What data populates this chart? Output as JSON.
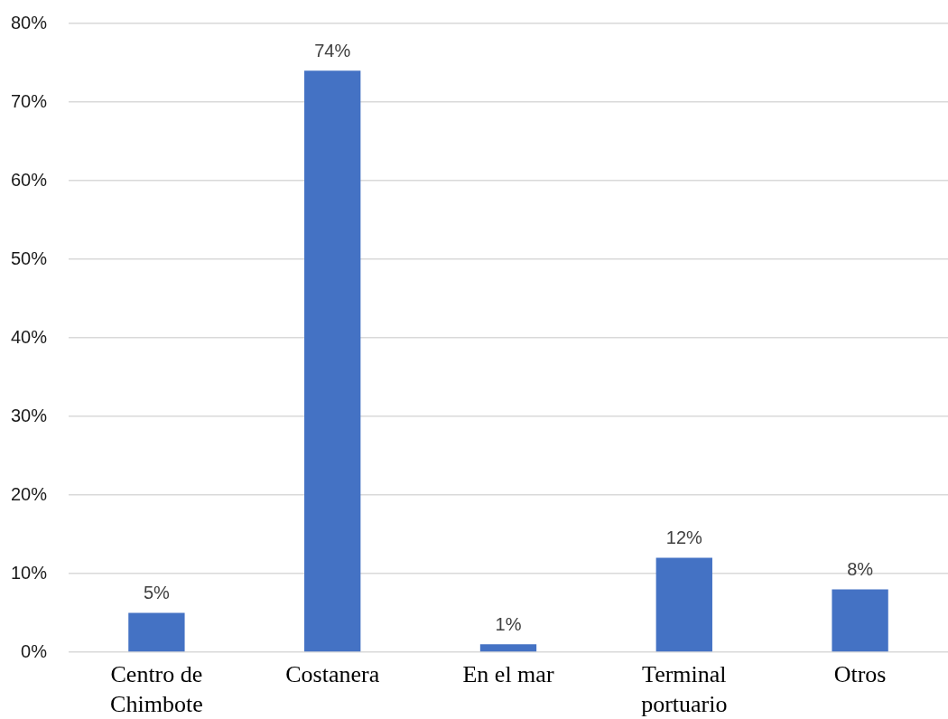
{
  "chart_data": {
    "type": "bar",
    "categories": [
      "Centro de Chimbote",
      "Costanera",
      "En el mar",
      "Terminal portuario",
      "Otros"
    ],
    "values": [
      5,
      74,
      1,
      12,
      8
    ],
    "color": "#4472c4",
    "value_labels": [
      "5%",
      "74%",
      "1%",
      "12%",
      "8%"
    ],
    "ylim": [
      0,
      80
    ],
    "yticks": [
      {
        "value": 0,
        "label": "0%"
      },
      {
        "value": 10,
        "label": "10%"
      },
      {
        "value": 20,
        "label": "20%"
      },
      {
        "value": 30,
        "label": "30%"
      },
      {
        "value": 40,
        "label": "40%"
      },
      {
        "value": 50,
        "label": "50%"
      },
      {
        "value": 60,
        "label": "60%"
      },
      {
        "value": 70,
        "label": "70%"
      },
      {
        "value": 80,
        "label": "80%"
      }
    ],
    "grid": "y"
  }
}
